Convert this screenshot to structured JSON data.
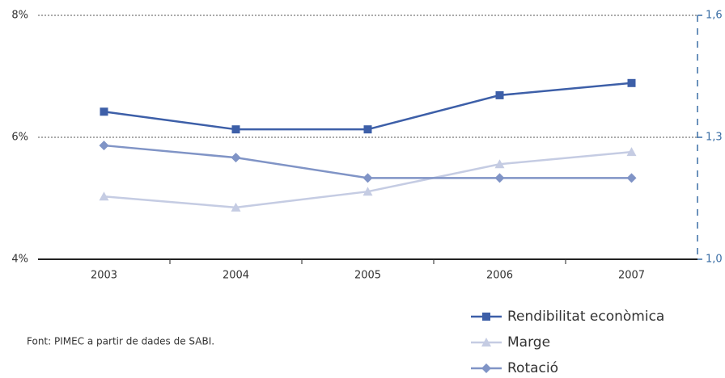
{
  "chart_data": {
    "type": "line",
    "categories": [
      "2003",
      "2004",
      "2005",
      "2006",
      "2007"
    ],
    "series": [
      {
        "name": "Rendibilitat econòmica",
        "color": "#3d5fa8",
        "marker": "square",
        "values": [
          6.42,
          6.13,
          6.13,
          6.69,
          6.89
        ]
      },
      {
        "name": "Marge",
        "color": "#c5cce3",
        "marker": "triangle",
        "values": [
          5.03,
          4.85,
          5.11,
          5.56,
          5.76
        ]
      },
      {
        "name": "Rotació",
        "color": "#8094c6",
        "marker": "diamond",
        "axis": "y2",
        "values": [
          1.28,
          1.25,
          1.2,
          1.2,
          1.2
        ]
      }
    ],
    "ylim": [
      4,
      8
    ],
    "yticks": [
      {
        "value": 4,
        "label": "4%"
      },
      {
        "value": 6,
        "label": "6%"
      },
      {
        "value": 8,
        "label": "8%"
      }
    ],
    "y2lim": [
      1.0,
      1.6
    ],
    "y2ticks": [
      {
        "value": 1.0,
        "label": "1,0"
      },
      {
        "value": 1.3,
        "label": "1,3"
      },
      {
        "value": 1.6,
        "label": "1,6"
      }
    ],
    "grid": true,
    "legend": "bottom-right",
    "source": "Font: PIMEC a partir de dades de SABI."
  }
}
